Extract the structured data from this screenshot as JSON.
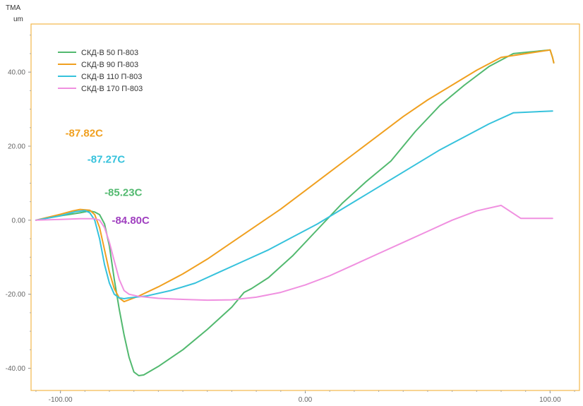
{
  "chart_data": {
    "type": "line",
    "title": "",
    "ylabel": "TMA",
    "yunit": "um",
    "xlim": [
      -112,
      112
    ],
    "ylim": [
      -46,
      53
    ],
    "x_ticks": [
      -100,
      0,
      100
    ],
    "x_tick_labels": [
      "-100.00",
      "0.00",
      "100.00"
    ],
    "y_ticks": [
      40,
      20,
      0,
      -20,
      -40
    ],
    "y_tick_labels": [
      "40.00",
      "20.00",
      "0.00",
      "-20.00",
      "-40.00"
    ],
    "frame_color": "#f3b74a",
    "legend_position": "top-left",
    "series": [
      {
        "name": "СКД-В 50 П-803",
        "color": "#52b96f",
        "points": [
          [
            -110,
            0
          ],
          [
            -100,
            1.2
          ],
          [
            -92,
            2.0
          ],
          [
            -88,
            2.5
          ],
          [
            -86,
            2.2
          ],
          [
            -84,
            1.5
          ],
          [
            -82,
            -1
          ],
          [
            -80,
            -7
          ],
          [
            -78,
            -16
          ],
          [
            -76,
            -24
          ],
          [
            -74,
            -31
          ],
          [
            -72,
            -37
          ],
          [
            -70,
            -41
          ],
          [
            -68,
            -42
          ],
          [
            -66,
            -41.8
          ],
          [
            -60,
            -39.5
          ],
          [
            -50,
            -35
          ],
          [
            -40,
            -29.5
          ],
          [
            -30,
            -23.5
          ],
          [
            -25,
            -19.5
          ],
          [
            -22,
            -18.5
          ],
          [
            -15,
            -15.5
          ],
          [
            -5,
            -9.5
          ],
          [
            5,
            -2.5
          ],
          [
            15,
            4.5
          ],
          [
            25,
            10.5
          ],
          [
            35,
            16
          ],
          [
            45,
            24
          ],
          [
            55,
            31
          ],
          [
            65,
            36.5
          ],
          [
            75,
            41.5
          ],
          [
            85,
            45
          ],
          [
            100,
            46
          ],
          [
            101,
            44
          ],
          [
            101.5,
            42.5
          ]
        ]
      },
      {
        "name": "СКД-В 90 П-803",
        "color": "#f0a020",
        "points": [
          [
            -110,
            0
          ],
          [
            -100,
            1.6
          ],
          [
            -95,
            2.5
          ],
          [
            -92,
            2.9
          ],
          [
            -88,
            2.7
          ],
          [
            -86,
            1.5
          ],
          [
            -84,
            -2
          ],
          [
            -82,
            -8
          ],
          [
            -80,
            -14
          ],
          [
            -78,
            -18.5
          ],
          [
            -76,
            -21
          ],
          [
            -74,
            -22
          ],
          [
            -72,
            -21.5
          ],
          [
            -68,
            -20.5
          ],
          [
            -60,
            -18
          ],
          [
            -50,
            -14.5
          ],
          [
            -40,
            -10.5
          ],
          [
            -30,
            -6
          ],
          [
            -20,
            -1.5
          ],
          [
            -10,
            3
          ],
          [
            0,
            8
          ],
          [
            10,
            13
          ],
          [
            20,
            18
          ],
          [
            30,
            23
          ],
          [
            40,
            28
          ],
          [
            50,
            32.5
          ],
          [
            60,
            36.5
          ],
          [
            70,
            40.5
          ],
          [
            80,
            44
          ],
          [
            100,
            46
          ],
          [
            101,
            44
          ],
          [
            101.5,
            42.5
          ]
        ]
      },
      {
        "name": "СКД-В 110 П-803",
        "color": "#36c2dc",
        "points": [
          [
            -110,
            0
          ],
          [
            -100,
            1.2
          ],
          [
            -94,
            2.3
          ],
          [
            -90,
            2.6
          ],
          [
            -88,
            2.0
          ],
          [
            -86,
            0
          ],
          [
            -84,
            -5
          ],
          [
            -82,
            -12
          ],
          [
            -80,
            -17
          ],
          [
            -78,
            -20
          ],
          [
            -76,
            -21
          ],
          [
            -74,
            -21.2
          ],
          [
            -72,
            -21
          ],
          [
            -65,
            -20.5
          ],
          [
            -55,
            -19
          ],
          [
            -45,
            -17
          ],
          [
            -35,
            -14
          ],
          [
            -25,
            -11
          ],
          [
            -15,
            -8
          ],
          [
            -5,
            -4.5
          ],
          [
            5,
            -1
          ],
          [
            15,
            3
          ],
          [
            25,
            7
          ],
          [
            35,
            11
          ],
          [
            45,
            15
          ],
          [
            55,
            19
          ],
          [
            65,
            22.5
          ],
          [
            75,
            26
          ],
          [
            85,
            29
          ],
          [
            101,
            29.5
          ]
        ]
      },
      {
        "name": "СКД-В 170 П-803",
        "color": "#f090e0",
        "points": [
          [
            -110,
            0
          ],
          [
            -100,
            0.2
          ],
          [
            -92,
            0.4
          ],
          [
            -86,
            0.4
          ],
          [
            -84,
            0
          ],
          [
            -82,
            -2
          ],
          [
            -80,
            -6
          ],
          [
            -78,
            -11
          ],
          [
            -76,
            -16
          ],
          [
            -74,
            -19
          ],
          [
            -72,
            -20
          ],
          [
            -68,
            -20.6
          ],
          [
            -60,
            -21.1
          ],
          [
            -50,
            -21.4
          ],
          [
            -40,
            -21.6
          ],
          [
            -30,
            -21.5
          ],
          [
            -20,
            -20.8
          ],
          [
            -10,
            -19.5
          ],
          [
            0,
            -17.5
          ],
          [
            10,
            -15
          ],
          [
            20,
            -12
          ],
          [
            30,
            -9
          ],
          [
            40,
            -6
          ],
          [
            50,
            -3
          ],
          [
            60,
            0
          ],
          [
            70,
            2.5
          ],
          [
            80,
            4
          ],
          [
            88,
            0.5
          ],
          [
            101,
            0.5
          ]
        ]
      }
    ],
    "annotations": [
      {
        "text": "-87.82C",
        "color": "#f0a020",
        "x": -98,
        "y": 23.5
      },
      {
        "text": "-87.27C",
        "color": "#36c2dc",
        "x": -89,
        "y": 16.5
      },
      {
        "text": "-85.23C",
        "color": "#52b96f",
        "x": -82,
        "y": 7.5
      },
      {
        "text": "-84.80C",
        "color": "#a040c0",
        "x": -79,
        "y": 0
      }
    ]
  }
}
